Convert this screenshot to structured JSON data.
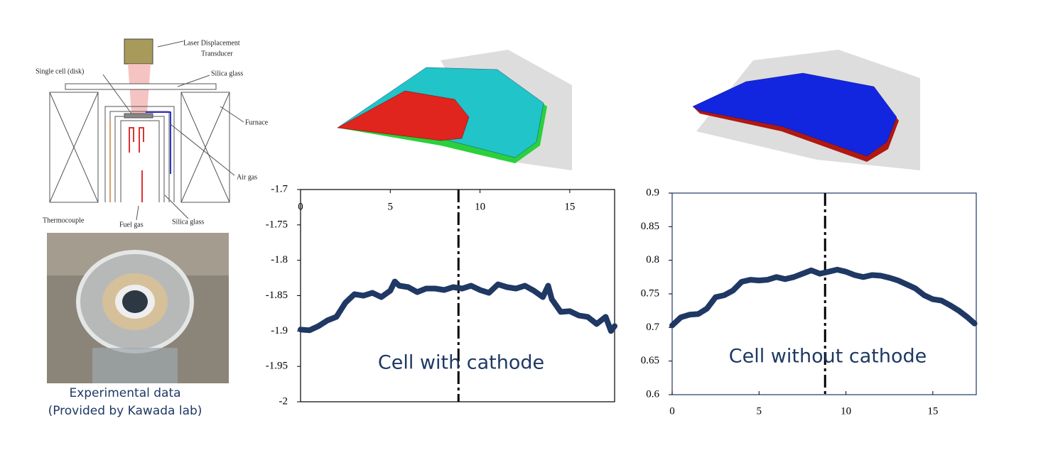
{
  "diagram": {
    "labels": [
      "Laser Displacement",
      "Transducer",
      "Single cell (disk)",
      "Silica glass",
      "Furnace",
      "Air gas",
      "Thermocouple",
      "Fuel gas",
      "Silica glass"
    ]
  },
  "caption": {
    "line1": "Experimental data",
    "line2": "(Provided by Kawada lab)"
  },
  "chart_data": [
    {
      "type": "line",
      "annotation": "Cell with cathode",
      "color": "#1f3864",
      "x_axis_position": "top",
      "x": [
        0,
        0.5,
        1.0,
        1.5,
        2.0,
        2.5,
        3.0,
        3.5,
        4.0,
        4.5,
        5.0,
        5.25,
        5.5,
        6.0,
        6.5,
        7.0,
        7.5,
        8.0,
        8.5,
        9.0,
        9.5,
        10.0,
        10.5,
        11.0,
        11.5,
        12.0,
        12.5,
        13.0,
        13.5,
        13.8,
        14.0,
        14.5,
        15.0,
        15.5,
        16.0,
        16.5,
        17.0,
        17.3,
        17.5
      ],
      "values": [
        -1.898,
        -1.899,
        -1.893,
        -1.885,
        -1.88,
        -1.86,
        -1.848,
        -1.85,
        -1.846,
        -1.852,
        -1.843,
        -1.83,
        -1.836,
        -1.838,
        -1.845,
        -1.84,
        -1.84,
        -1.842,
        -1.838,
        -1.84,
        -1.836,
        -1.842,
        -1.846,
        -1.834,
        -1.838,
        -1.84,
        -1.836,
        -1.843,
        -1.852,
        -1.836,
        -1.855,
        -1.873,
        -1.872,
        -1.878,
        -1.88,
        -1.89,
        -1.88,
        -1.9,
        -1.893
      ],
      "xlim": [
        0,
        17.5
      ],
      "ylim": [
        -2,
        -1.7
      ],
      "xticks": [
        0,
        5,
        10,
        15
      ],
      "yticks": [
        -2,
        -1.95,
        -1.9,
        -1.85,
        -1.8,
        -1.75,
        -1.7
      ],
      "reference_line_x": 8.8
    },
    {
      "type": "line",
      "annotation": "Cell without cathode",
      "color": "#1f3864",
      "x_axis_position": "bottom",
      "x": [
        0,
        0.5,
        1.0,
        1.5,
        2.0,
        2.5,
        3.0,
        3.5,
        4.0,
        4.5,
        5.0,
        5.5,
        6.0,
        6.5,
        7.0,
        7.5,
        8.0,
        8.5,
        9.0,
        9.5,
        10.0,
        10.5,
        11.0,
        11.5,
        12.0,
        12.5,
        13.0,
        13.5,
        14.0,
        14.5,
        15.0,
        15.5,
        16.0,
        16.5,
        17.0,
        17.4
      ],
      "values": [
        0.703,
        0.715,
        0.719,
        0.72,
        0.728,
        0.745,
        0.748,
        0.755,
        0.768,
        0.771,
        0.77,
        0.771,
        0.775,
        0.772,
        0.775,
        0.78,
        0.785,
        0.78,
        0.783,
        0.786,
        0.783,
        0.778,
        0.775,
        0.778,
        0.777,
        0.774,
        0.77,
        0.764,
        0.758,
        0.748,
        0.742,
        0.74,
        0.733,
        0.725,
        0.715,
        0.706
      ],
      "xlim": [
        0,
        17.5
      ],
      "ylim": [
        0.6,
        0.9
      ],
      "xticks": [
        0,
        5,
        10,
        15
      ],
      "yticks": [
        0.6,
        0.65,
        0.7,
        0.75,
        0.8,
        0.85,
        0.9
      ],
      "reference_line_x": 8.8
    }
  ]
}
